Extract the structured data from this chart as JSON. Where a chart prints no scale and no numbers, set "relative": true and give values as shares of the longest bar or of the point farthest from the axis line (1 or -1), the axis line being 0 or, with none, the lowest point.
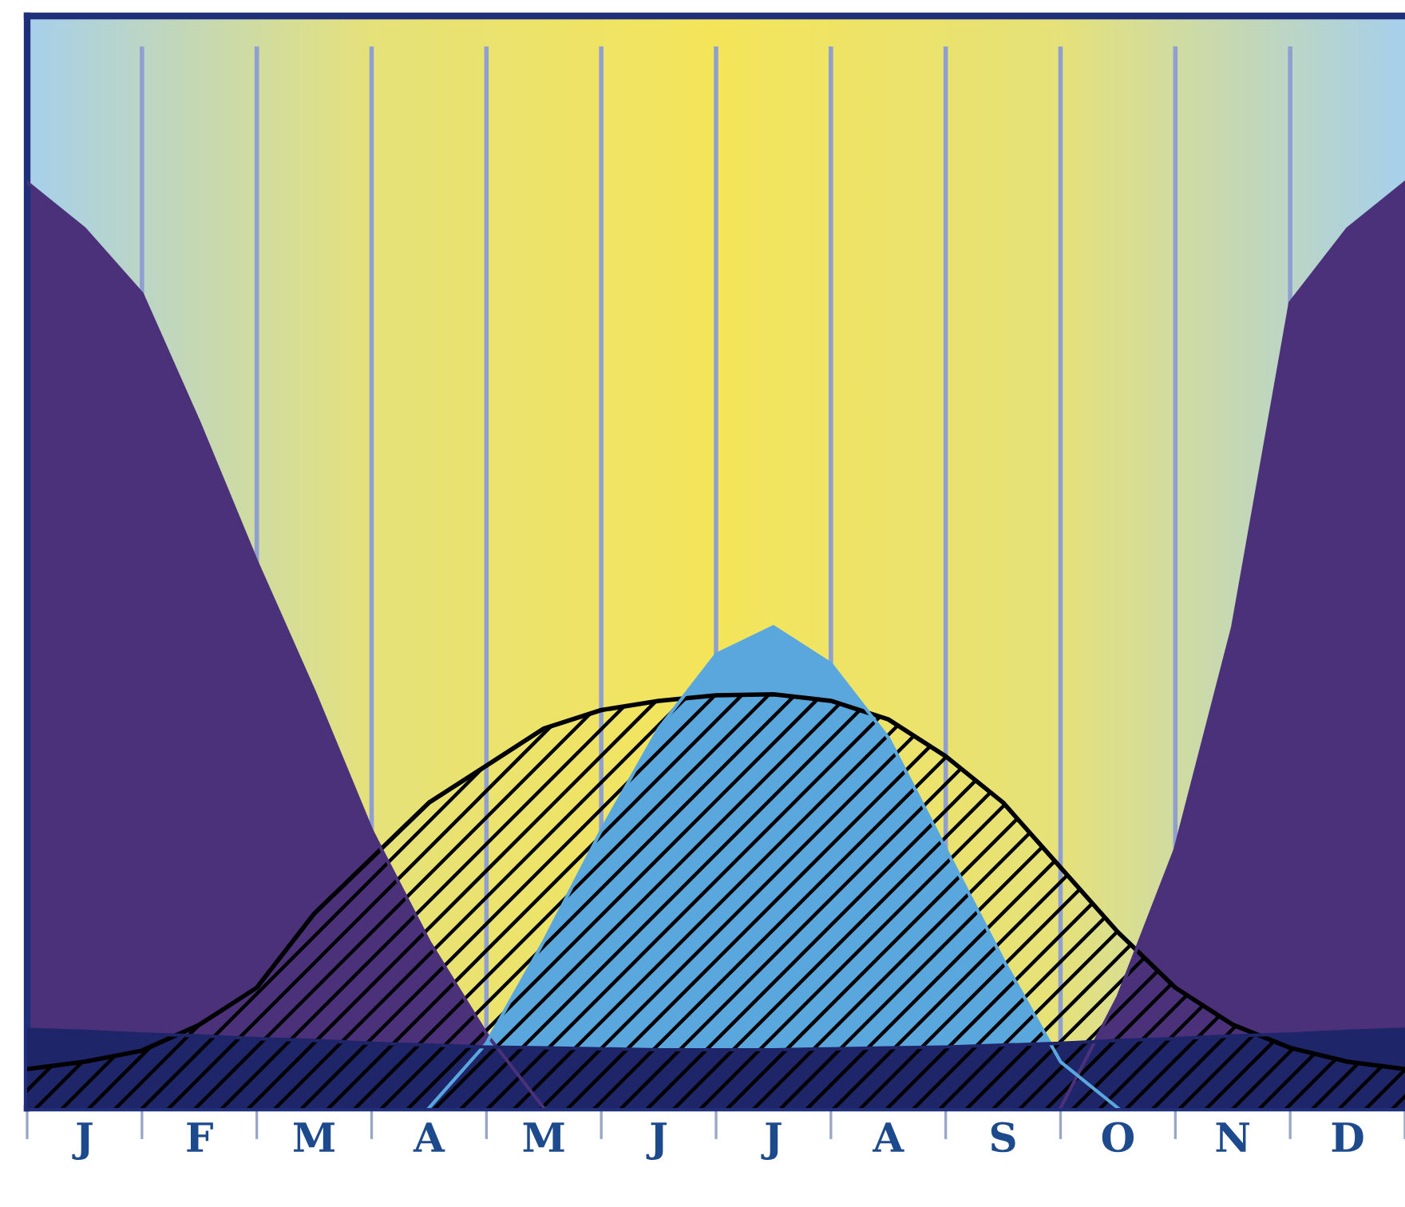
{
  "chart_data": {
    "type": "area",
    "relative": true,
    "categories": [
      null,
      "J",
      null,
      "F",
      null,
      "M",
      null,
      "A",
      null,
      "M",
      null,
      "J",
      null,
      "J",
      null,
      "A",
      null,
      "S",
      null,
      "O",
      null,
      "N",
      null,
      "D",
      null
    ],
    "tick_labels": "x",
    "grid": "x",
    "series": [
      {
        "color": "#4a317a",
        "values": [
          1.0,
          0.95,
          0.88,
          0.74,
          0.59,
          0.45,
          0.3,
          0.18,
          0.08,
          0,
          null,
          null,
          null,
          null,
          null,
          null,
          null,
          null,
          0,
          0.12,
          0.28,
          0.52,
          0.87,
          0.95,
          1.0
        ]
      },
      {
        "color": "#5aa7de",
        "values": [
          null,
          null,
          null,
          null,
          null,
          null,
          null,
          0,
          0.07,
          0.18,
          0.3,
          0.41,
          0.49,
          0.52,
          0.48,
          0.4,
          0.28,
          0.16,
          0.05,
          0,
          null,
          null,
          null,
          null,
          null
        ]
      },
      {
        "color": "#1e2569",
        "values": [
          0.085,
          0.083,
          0.08,
          0.078,
          0.075,
          0.073,
          0.07,
          0.068,
          0.066,
          0.065,
          0.064,
          0.063,
          0.063,
          0.063,
          0.064,
          0.065,
          0.066,
          0.068,
          0.07,
          0.073,
          0.075,
          0.078,
          0.08,
          0.083,
          0.085
        ]
      },
      {
        "color": "#000000",
        "line_style": "solid",
        "values": [
          0.042,
          0.05,
          0.062,
          0.09,
          0.13,
          0.21,
          0.27,
          0.33,
          0.37,
          0.41,
          0.43,
          0.44,
          0.446,
          0.447,
          0.44,
          0.42,
          0.38,
          0.33,
          0.26,
          0.19,
          0.13,
          0.09,
          0.065,
          0.05,
          0.042
        ]
      }
    ]
  }
}
